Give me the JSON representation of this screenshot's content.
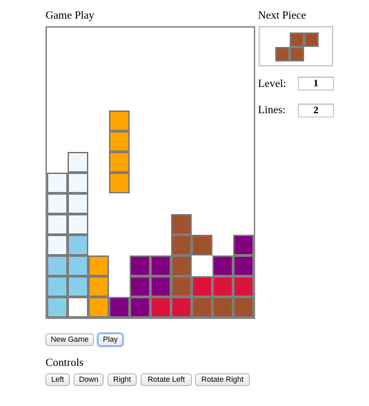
{
  "headings": {
    "game_play": "Game Play",
    "next_piece": "Next Piece",
    "controls": "Controls"
  },
  "stats": {
    "level_label": "Level:",
    "level_value": "1",
    "lines_label": "Lines:",
    "lines_value": "2"
  },
  "buttons": {
    "new_game": "New Game",
    "play": "Play",
    "left": "Left",
    "down": "Down",
    "right": "Right",
    "rotate_left": "Rotate Left",
    "rotate_right": "Rotate Right"
  },
  "colors": {
    "a": "#f0f8ff",
    "b": "#87ceeb",
    "o": "#ffa500",
    "p": "#800080",
    "r": "#dc143c",
    "n": "#a0522d",
    "w": "#ffffff"
  },
  "board": {
    "columns": 10,
    "rows": 14,
    "grid": [
      "..........",
      "..........",
      "..........",
      "..........",
      "...o......",
      "...o......",
      ".a.o......",
      "aa.o......",
      "aa........",
      "aa....n...",
      "ab....nn.pp",
      "bbo.ppn.pp",
      "bbo.ppnrrr",
      "bwopprrnnn"
    ]
  },
  "next_piece": {
    "color": "n",
    "grid": [
      ".nn",
      "nn."
    ]
  }
}
